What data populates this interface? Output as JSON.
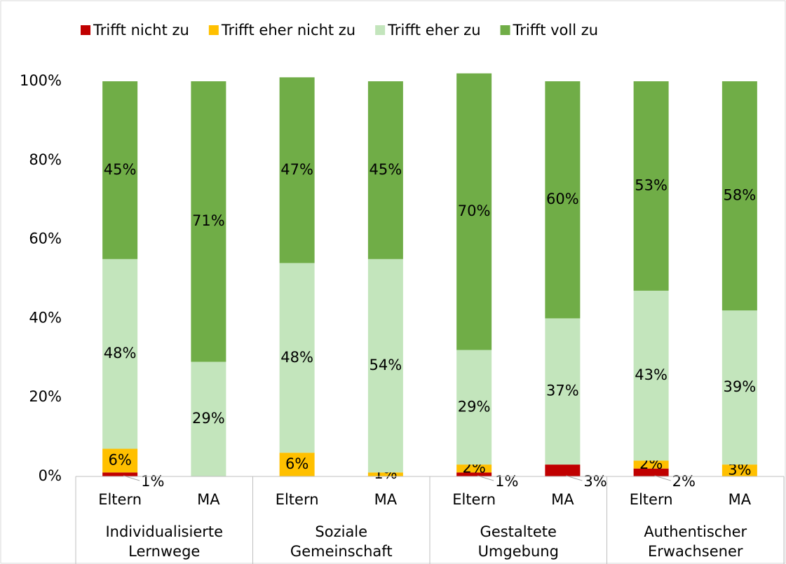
{
  "chart_data": {
    "type": "stacked_bar",
    "categories": [
      "Eltern",
      "MA",
      "Eltern",
      "MA",
      "Eltern",
      "MA",
      "Eltern",
      "MA"
    ],
    "groups": [
      [
        "Individualisierte",
        "Lernwege"
      ],
      [
        "Soziale",
        "Gemeinschaft"
      ],
      [
        "Gestaltete",
        "Umgebung"
      ],
      [
        "Authentischer",
        "Erwachsener"
      ]
    ],
    "series": [
      {
        "name": "Trifft nicht zu",
        "color": "#c00000",
        "values": [
          1,
          0,
          0,
          0,
          1,
          3,
          2,
          0
        ],
        "value_labels": [
          "1%",
          null,
          null,
          null,
          "1%",
          "3%",
          "2%",
          null
        ]
      },
      {
        "name": "Trifft eher nicht zu",
        "color": "#ffc000",
        "values": [
          6,
          0,
          6,
          1,
          2,
          0,
          2,
          3
        ],
        "value_labels": [
          "6%",
          null,
          "6%",
          "1%",
          "2%",
          null,
          "2%",
          "3%"
        ]
      },
      {
        "name": "Trifft eher zu",
        "color": "#c3e5bc",
        "values": [
          48,
          29,
          48,
          54,
          29,
          37,
          43,
          39
        ],
        "value_labels": [
          "48%",
          "29%",
          "48%",
          "54%",
          "29%",
          "37%",
          "43%",
          "39%"
        ]
      },
      {
        "name": "Trifft voll zu",
        "color": "#70ad47",
        "values": [
          45,
          71,
          47,
          45,
          70,
          60,
          53,
          58
        ],
        "value_labels": [
          "45%",
          "71%",
          "47%",
          "45%",
          "70%",
          "60%",
          "53%",
          "58%"
        ]
      }
    ],
    "ylim": [
      0,
      100
    ],
    "yticks": [
      {
        "value": 0,
        "label": "0%"
      },
      {
        "value": 20,
        "label": "20%"
      },
      {
        "value": 40,
        "label": "40%"
      },
      {
        "value": 60,
        "label": "60%"
      },
      {
        "value": 80,
        "label": "80%"
      },
      {
        "value": 100,
        "label": "100%"
      }
    ],
    "grid": false,
    "legend": "top"
  }
}
